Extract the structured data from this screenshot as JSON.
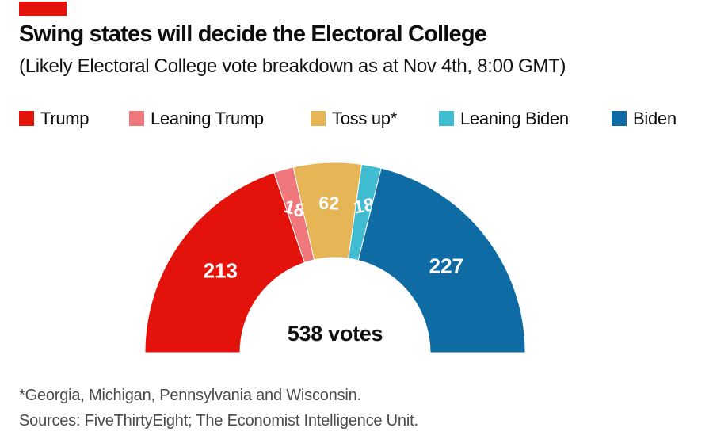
{
  "brand": {
    "tag_color": "#E3120B"
  },
  "header": {
    "title": "Swing states will decide the Electoral College",
    "subtitle": "(Likely Electoral College vote breakdown as at Nov 4th, 8:00 GMT)"
  },
  "legend": {
    "items": [
      {
        "label": "Trump",
        "color": "#E3120B"
      },
      {
        "label": "Leaning Trump",
        "color": "#F0787D"
      },
      {
        "label": "Toss up*",
        "color": "#E6B656"
      },
      {
        "label": "Leaning Biden",
        "color": "#40BDD1"
      },
      {
        "label": "Biden",
        "color": "#0E6BA4"
      }
    ]
  },
  "chart_data": {
    "type": "pie",
    "subtype": "half-donut-gauge",
    "title": "Likely Electoral College vote breakdown as at Nov 4th, 8:00 GMT",
    "total": 538,
    "total_label": "538 votes",
    "start_angle_deg": 180,
    "end_angle_deg": 0,
    "inner_radius_ratio": 0.5,
    "legend_position": "top",
    "series": [
      {
        "name": "Trump",
        "value": 213,
        "color": "#E3120B"
      },
      {
        "name": "Leaning Trump",
        "value": 18,
        "color": "#F0787D"
      },
      {
        "name": "Toss up",
        "value": 62,
        "color": "#E6B656"
      },
      {
        "name": "Leaning Biden",
        "value": 18,
        "color": "#40BDD1"
      },
      {
        "name": "Biden",
        "value": 227,
        "color": "#0E6BA4"
      }
    ]
  },
  "footer": {
    "footnote": "*Georgia, Michigan, Pennsylvania and Wisconsin.",
    "sources": "Sources: FiveThirtyEight; The Economist Intelligence Unit."
  }
}
